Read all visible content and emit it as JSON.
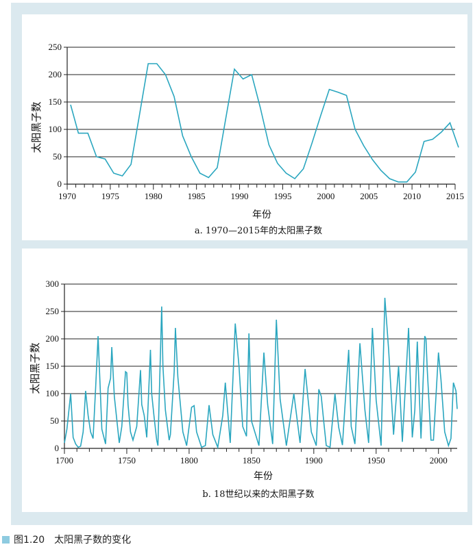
{
  "figure": {
    "number": "图1.20",
    "title": "太阳黑子数的变化",
    "line_color": "#2aa6bf"
  },
  "chart_data": [
    {
      "type": "line",
      "caption": "a.  1970—2015年的太阳黑子数",
      "xlabel": "年份",
      "ylabel": "太阳黑子数",
      "xlim": [
        1970,
        2015
      ],
      "ylim": [
        0,
        250
      ],
      "xticks": [
        1970,
        1975,
        1980,
        1985,
        1990,
        1995,
        2000,
        2005,
        2010,
        2015
      ],
      "yticks": [
        0,
        50,
        100,
        150,
        200,
        250
      ],
      "grid": "horizontal",
      "series": [
        {
          "x": [
            1970.4,
            1971.3,
            1972.4,
            1973.4,
            1974.4,
            1975.4,
            1976.4,
            1977.4,
            1978.4,
            1979.4,
            1980.4,
            1981.4,
            1982.4,
            1983.4,
            1984.4,
            1985.4,
            1986.4,
            1987.4,
            1988.4,
            1989.4,
            1990.4,
            1991.4,
            1992.4,
            1993.4,
            1994.4,
            1995.4,
            1996.4,
            1997.4,
            1998.4,
            1999.4,
            2000.4,
            2001.4,
            2002.4,
            2003.4,
            2004.4,
            2005.4,
            2006.4,
            2007.4,
            2008.4,
            2009.4,
            2010.4,
            2011.4,
            2012.4,
            2013.4,
            2014.4,
            2015.4
          ],
          "y": [
            145,
            93,
            93,
            50,
            46,
            20,
            15,
            36,
            128,
            220,
            220,
            200,
            160,
            88,
            50,
            20,
            12,
            30,
            120,
            210,
            192,
            200,
            140,
            72,
            38,
            20,
            10,
            28,
            75,
            125,
            173,
            168,
            162,
            100,
            70,
            45,
            25,
            10,
            4,
            4,
            22,
            78,
            82,
            95,
            112,
            67
          ]
        }
      ]
    },
    {
      "type": "line",
      "caption": "b.  18世纪以来的太阳黑子数",
      "xlabel": "年份",
      "ylabel": "太阳黑子数",
      "xlim": [
        1700,
        2015
      ],
      "ylim": [
        0,
        300
      ],
      "xticks": [
        1700,
        1750,
        1800,
        1850,
        1900,
        1950,
        2000
      ],
      "yticks": [
        0,
        50,
        100,
        150,
        200,
        250,
        300
      ],
      "grid": "horizontal",
      "series": [
        {
          "x": [
            1700,
            1702,
            1705,
            1707,
            1709,
            1711,
            1713,
            1715,
            1717,
            1719,
            1721,
            1723,
            1725,
            1727,
            1728,
            1730,
            1733,
            1735,
            1737,
            1738,
            1740,
            1744,
            1746,
            1749,
            1750,
            1751,
            1753,
            1755,
            1758,
            1761,
            1762,
            1764,
            1766,
            1769,
            1770,
            1772,
            1774,
            1775,
            1778,
            1779,
            1781,
            1784,
            1785,
            1788,
            1789,
            1791,
            1795,
            1798,
            1802,
            1804,
            1806,
            1810,
            1813,
            1816,
            1819,
            1823,
            1827,
            1829,
            1833,
            1837,
            1840,
            1843,
            1846,
            1848,
            1850,
            1856,
            1860,
            1863,
            1867,
            1870,
            1873,
            1878,
            1884,
            1889,
            1893,
            1898,
            1902,
            1904,
            1906,
            1908,
            1910,
            1913,
            1917,
            1920,
            1923,
            1928,
            1930,
            1933,
            1937,
            1941,
            1944,
            1947,
            1950,
            1954,
            1957,
            1960,
            1964,
            1968,
            1971,
            1976,
            1979,
            1981,
            1983,
            1986,
            1989,
            1990,
            1991,
            1994,
            1996,
            2000,
            2002,
            2005,
            2008,
            2010,
            2012,
            2014,
            2015
          ],
          "y": [
            10,
            35,
            100,
            20,
            8,
            2,
            4,
            30,
            105,
            60,
            30,
            18,
            110,
            205,
            150,
            35,
            8,
            110,
            128,
            185,
            95,
            10,
            40,
            140,
            138,
            80,
            30,
            15,
            40,
            143,
            80,
            60,
            20,
            180,
            100,
            55,
            15,
            5,
            259,
            150,
            70,
            15,
            25,
            140,
            220,
            130,
            30,
            5,
            75,
            78,
            30,
            2,
            5,
            79,
            25,
            2,
            60,
            120,
            10,
            228,
            150,
            40,
            22,
            210,
            50,
            5,
            175,
            80,
            8,
            235,
            90,
            5,
            100,
            10,
            145,
            30,
            5,
            108,
            95,
            48,
            5,
            2,
            100,
            38,
            6,
            180,
            40,
            8,
            192,
            70,
            10,
            220,
            88,
            5,
            275,
            180,
            25,
            150,
            12,
            220,
            20,
            70,
            195,
            18,
            205,
            200,
            145,
            15,
            15,
            175,
            125,
            30,
            5,
            18,
            120,
            105,
            72
          ]
        }
      ]
    }
  ]
}
